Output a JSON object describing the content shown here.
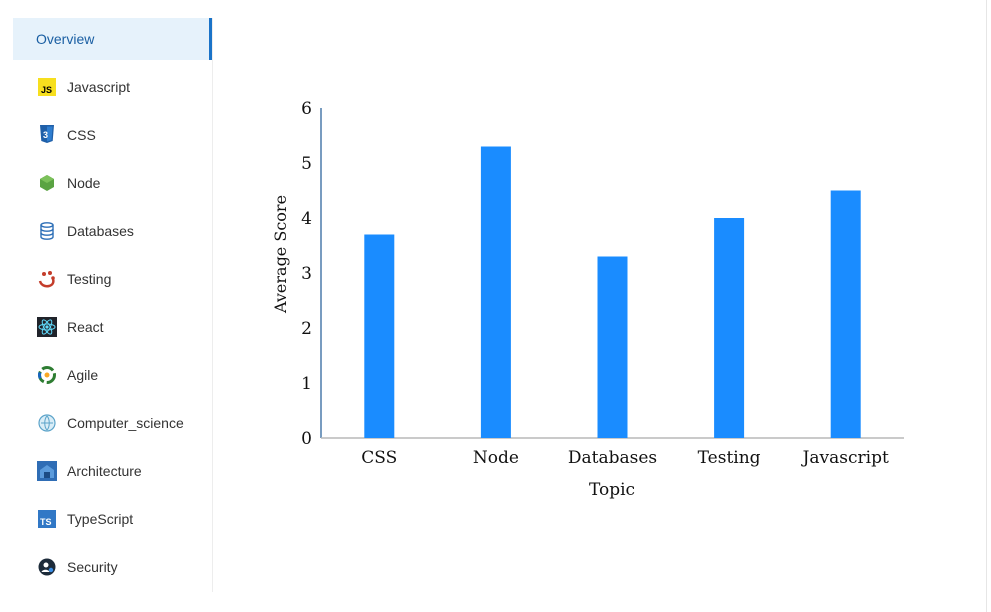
{
  "sidebar": {
    "items": [
      {
        "label": "Overview",
        "icon": "overview",
        "active": true
      },
      {
        "label": "Javascript",
        "icon": "javascript-icon"
      },
      {
        "label": "CSS",
        "icon": "css3-icon"
      },
      {
        "label": "Node",
        "icon": "node-icon"
      },
      {
        "label": "Databases",
        "icon": "database-icon"
      },
      {
        "label": "Testing",
        "icon": "jest-icon"
      },
      {
        "label": "React",
        "icon": "react-icon"
      },
      {
        "label": "Agile",
        "icon": "agile-icon"
      },
      {
        "label": "Computer_science",
        "icon": "computer-science-icon"
      },
      {
        "label": "Architecture",
        "icon": "architecture-icon"
      },
      {
        "label": "TypeScript",
        "icon": "typescript-icon"
      },
      {
        "label": "Security",
        "icon": "security-icon"
      }
    ]
  },
  "colors": {
    "bar": "#1a8cff",
    "active_bg": "#e6f2fb",
    "active_border": "#1a73c8"
  },
  "chart_data": {
    "type": "bar",
    "categories": [
      "CSS",
      "Node",
      "Databases",
      "Testing",
      "Javascript"
    ],
    "values": [
      3.7,
      5.3,
      3.3,
      4.0,
      4.5
    ],
    "xlabel": "Topic",
    "ylabel": "Average Score",
    "ylim": [
      0,
      6
    ],
    "yticks": [
      0,
      1,
      2,
      3,
      4,
      5,
      6
    ],
    "grid": false
  }
}
